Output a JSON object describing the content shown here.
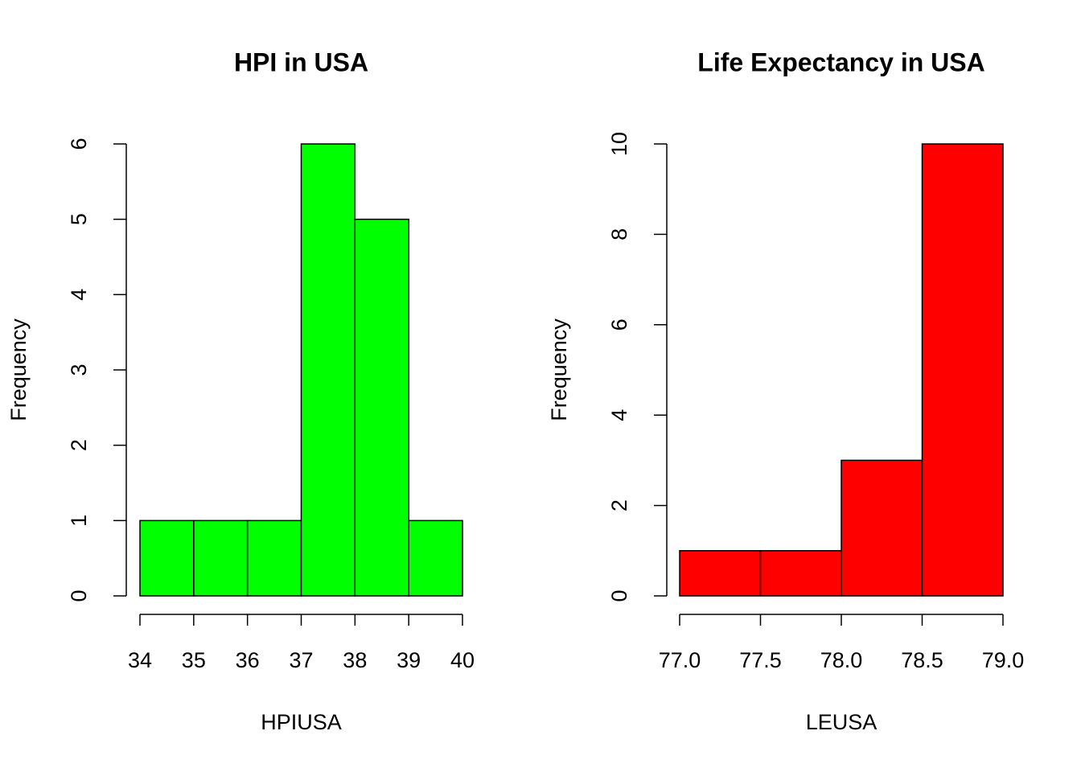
{
  "chart_data": [
    {
      "type": "histogram",
      "title": "HPI in USA",
      "xlabel": "HPIUSA",
      "ylabel": "Frequency",
      "bins": [
        34,
        35,
        36,
        37,
        38,
        39,
        40
      ],
      "values": [
        1,
        1,
        1,
        6,
        5,
        1
      ],
      "color": "#00ff00",
      "xlim": [
        34,
        40
      ],
      "xticks": [
        34,
        35,
        36,
        37,
        38,
        39,
        40
      ],
      "ylim": [
        0,
        6
      ],
      "yticks": [
        0,
        1,
        2,
        3,
        4,
        5,
        6
      ]
    },
    {
      "type": "histogram",
      "title": "Life Expectancy in USA",
      "xlabel": "LEUSA",
      "ylabel": "Frequency",
      "bins": [
        77,
        77.5,
        78,
        78.5,
        79
      ],
      "values": [
        1,
        1,
        3,
        10
      ],
      "color": "#ff0000",
      "xlim": [
        77,
        79
      ],
      "xticks": [
        {
          "value": 77,
          "label": "77.0"
        },
        77.5,
        {
          "value": 78,
          "label": "78.0"
        },
        78.5,
        {
          "value": 79,
          "label": "79.0"
        }
      ],
      "ylim": [
        0,
        10
      ],
      "yticks": [
        0,
        2,
        4,
        6,
        8,
        10
      ]
    }
  ]
}
